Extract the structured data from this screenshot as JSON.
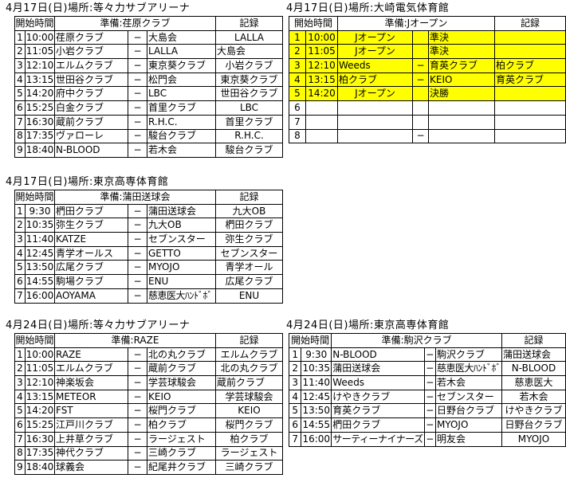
{
  "colors": {
    "highlight": "#ffff00",
    "grid": "#000000",
    "text": "#000000",
    "background": "#ffffff"
  },
  "labels": {
    "start_time": "開始時間",
    "record": "記録"
  },
  "tables": [
    {
      "title": "4月17日(日)場所:等々力サブアリーナ",
      "prep": "準備:荏原クラブ",
      "rows": [
        {
          "no": "1",
          "time": "10:00",
          "home": "荏原クラブ",
          "vs": "−",
          "away": "大島会",
          "rec": "LALLA"
        },
        {
          "no": "2",
          "time": "11:05",
          "home": "小岩クラブ",
          "vs": "−",
          "away": "LALLA",
          "rec": "大島会",
          "recAlign": "left"
        },
        {
          "no": "3",
          "time": "12:10",
          "home": "エルムクラブ",
          "vs": "−",
          "away": "東京葵クラブ",
          "rec": "小岩クラブ"
        },
        {
          "no": "4",
          "time": "13:15",
          "home": "世田谷クラブ",
          "vs": "−",
          "away": "松門会",
          "rec": "東京葵クラブ"
        },
        {
          "no": "5",
          "time": "14:20",
          "home": "府中クラブ",
          "vs": "−",
          "away": "LBC",
          "rec": "世田谷クラブ"
        },
        {
          "no": "6",
          "time": "15:25",
          "home": "白金クラブ",
          "vs": "−",
          "away": "首里クラブ",
          "rec": "LBC"
        },
        {
          "no": "7",
          "time": "16:30",
          "home": "蔵前クラブ",
          "vs": "−",
          "away": "R.H.C.",
          "rec": "首里クラブ"
        },
        {
          "no": "8",
          "time": "17:35",
          "home": "ヴァローレ",
          "vs": "−",
          "away": "駿台クラブ",
          "rec": "R.H.C."
        },
        {
          "no": "9",
          "time": "18:40",
          "home": "N-BLOOD",
          "vs": "−",
          "away": "若木会",
          "rec": "駿台クラブ"
        }
      ]
    },
    {
      "title": "4月17日(日)場所:大崎電気体育館",
      "prep": "準備:Jオープン",
      "rows": [
        {
          "no": "1",
          "time": "10:00",
          "home": "Jオープン",
          "homeAlign": "center",
          "vs": "",
          "away": "準決",
          "rec": "",
          "hl": true
        },
        {
          "no": "2",
          "time": "11:05",
          "home": "Jオープン",
          "homeAlign": "center",
          "vs": "",
          "away": "準決",
          "rec": "",
          "hl": true
        },
        {
          "no": "3",
          "time": "12:10",
          "home": "Weeds",
          "vs": "−",
          "away": "育英クラブ",
          "rec": "柏クラブ",
          "recAlign": "left",
          "hl": true
        },
        {
          "no": "4",
          "time": "13:15",
          "home": "柏クラブ",
          "vs": "−",
          "away": "KEIO",
          "rec": "育英クラブ",
          "recAlign": "left",
          "hl": true
        },
        {
          "no": "5",
          "time": "14:20",
          "home": "Jオープン",
          "homeAlign": "center",
          "vs": "",
          "away": "決勝",
          "rec": "",
          "hl": true
        },
        {
          "no": "6",
          "time": "",
          "home": "",
          "vs": "",
          "away": "",
          "rec": ""
        },
        {
          "no": "7",
          "time": "",
          "home": "",
          "vs": "",
          "away": "",
          "rec": ""
        },
        {
          "no": "8",
          "time": "",
          "home": "",
          "vs": "−",
          "away": "",
          "rec": ""
        }
      ]
    },
    {
      "title": "4月17日(日)場所:東京高専体育館",
      "prep": "準備:蒲田送球会",
      "rows": [
        {
          "no": "1",
          "time": "9:30",
          "home": "椚田クラブ",
          "vs": "−",
          "away": "蒲田送球会",
          "rec": "九大OB"
        },
        {
          "no": "2",
          "time": "10:35",
          "home": "弥生クラブ",
          "vs": "−",
          "away": "九大OB",
          "rec": "椚田クラブ"
        },
        {
          "no": "3",
          "time": "11:40",
          "home": "KATZE",
          "vs": "−",
          "away": "セブンスター",
          "rec": "弥生クラブ"
        },
        {
          "no": "4",
          "time": "12:45",
          "home": "青学オールス",
          "vs": "−",
          "away": "GETTO",
          "rec": "セブンスター"
        },
        {
          "no": "5",
          "time": "13:50",
          "home": "広尾クラブ",
          "vs": "−",
          "away": "MYOJO",
          "rec": "青学オール"
        },
        {
          "no": "6",
          "time": "14:55",
          "home": "駒場クラブ",
          "vs": "−",
          "away": "ENU",
          "rec": "広尾クラブ"
        },
        {
          "no": "7",
          "time": "16:00",
          "home": "AOYAMA",
          "vs": "−",
          "away": "慈恵医大ﾊﾝﾄﾞﾎﾞ",
          "awaySmall": true,
          "rec": "ENU"
        }
      ]
    },
    {
      "title": "4月24日(日)場所:等々力サブアリーナ",
      "prep": "準備:RAZE",
      "rows": [
        {
          "no": "1",
          "time": "10:00",
          "home": "RAZE",
          "vs": "−",
          "away": "北の丸クラブ",
          "rec": "エルムクラブ"
        },
        {
          "no": "2",
          "time": "11:05",
          "home": "エルムクラブ",
          "vs": "−",
          "away": "蔵前クラブ",
          "rec": "北の丸クラブ"
        },
        {
          "no": "3",
          "time": "12:10",
          "home": "神楽坂会",
          "vs": "−",
          "away": "学芸球駿会",
          "rec": "蔵前クラブ",
          "recAlign": "left"
        },
        {
          "no": "4",
          "time": "13:15",
          "home": "METEOR",
          "vs": "−",
          "away": "KEIO",
          "rec": "学芸球駿会"
        },
        {
          "no": "5",
          "time": "14:20",
          "home": "FST",
          "vs": "−",
          "away": "桜門クラブ",
          "rec": "KEIO"
        },
        {
          "no": "6",
          "time": "15:25",
          "home": "江戸川クラブ",
          "vs": "−",
          "away": "柏クラブ",
          "rec": "桜門クラブ"
        },
        {
          "no": "7",
          "time": "16:30",
          "home": "上井草クラブ",
          "vs": "−",
          "away": "ラージェスト",
          "rec": "柏クラブ"
        },
        {
          "no": "8",
          "time": "17:35",
          "home": "神代クラブ",
          "vs": "−",
          "away": "三崎クラブ",
          "rec": "ラージェスト"
        },
        {
          "no": "9",
          "time": "18:40",
          "home": "球義会",
          "vs": "−",
          "away": "紀尾井クラブ",
          "rec": "三崎クラブ"
        }
      ]
    },
    {
      "title": "4月24日(日)場所:東京高専体育館",
      "prep": "準備:駒沢クラブ",
      "rows": [
        {
          "no": "1",
          "time": "9:30",
          "home": "N-BLOOD",
          "vs": "−",
          "away": "駒沢クラブ",
          "rec": "蒲田送球会",
          "recAlign": "left"
        },
        {
          "no": "2",
          "time": "10:35",
          "home": "蒲田送球会",
          "vs": "−",
          "away": "慈恵医大ﾊﾝﾄﾞﾎﾞ",
          "awaySmall": true,
          "rec": "N-BLOOD"
        },
        {
          "no": "3",
          "time": "11:40",
          "home": "Weeds",
          "vs": "−",
          "away": "若木会",
          "rec": "慈恵医大"
        },
        {
          "no": "4",
          "time": "12:45",
          "home": "けやきクラブ",
          "vs": "−",
          "away": "セブンスター",
          "rec": "若木会"
        },
        {
          "no": "5",
          "time": "13:50",
          "home": "育英クラブ",
          "vs": "−",
          "away": "日野台クラブ",
          "rec": "けやきクラブ"
        },
        {
          "no": "6",
          "time": "14:55",
          "home": "椚田クラブ",
          "vs": "−",
          "away": "MYOJO",
          "rec": "日野台クラブ"
        },
        {
          "no": "7",
          "time": "16:00",
          "home": "サーティーナイナーズ",
          "homeSmall": true,
          "vs": "−",
          "away": "明友会",
          "rec": "MYOJO"
        }
      ]
    }
  ]
}
